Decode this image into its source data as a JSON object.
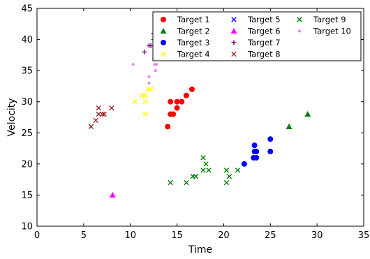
{
  "chart_data": {
    "type": "scatter",
    "title": "",
    "xlabel": "Time",
    "ylabel": "Velocity",
    "xlim": [
      0,
      35
    ],
    "ylim": [
      10,
      45
    ],
    "xticks": [
      0,
      5,
      10,
      15,
      20,
      25,
      30,
      35
    ],
    "yticks": [
      10,
      15,
      20,
      25,
      30,
      35,
      40,
      45
    ],
    "grid": false,
    "legend_position": "top-right",
    "legend_columns": 3,
    "series": [
      {
        "name": "Target 1",
        "marker": "circle",
        "color": "#ff0000",
        "points": [
          [
            14,
            26
          ],
          [
            14.3,
            28
          ],
          [
            14.6,
            28
          ],
          [
            14.3,
            30
          ],
          [
            15,
            29
          ],
          [
            15,
            30
          ],
          [
            15.5,
            30
          ],
          [
            16,
            31
          ],
          [
            16.6,
            32
          ]
        ]
      },
      {
        "name": "Target 2",
        "marker": "triangle",
        "color": "#008000",
        "points": [
          [
            27,
            26
          ],
          [
            29,
            28
          ]
        ]
      },
      {
        "name": "Target 3",
        "marker": "circle",
        "color": "#0000ff",
        "points": [
          [
            22.2,
            20
          ],
          [
            23.2,
            21
          ],
          [
            23.5,
            21
          ],
          [
            23.3,
            22
          ],
          [
            23.5,
            22
          ],
          [
            23.3,
            23
          ],
          [
            25,
            22
          ],
          [
            25,
            24
          ]
        ]
      },
      {
        "name": "Target 4",
        "marker": "x",
        "color": "#ffff00",
        "points": [
          [
            10.5,
            30
          ],
          [
            11.3,
            31
          ],
          [
            11.6,
            31
          ],
          [
            11.6,
            30
          ],
          [
            11.9,
            32
          ],
          [
            12.2,
            32
          ],
          [
            11.6,
            28
          ]
        ]
      },
      {
        "name": "Target 5",
        "marker": "x",
        "color": "#0000ff",
        "points": []
      },
      {
        "name": "Target 6",
        "marker": "triangle",
        "color": "#ff00ff",
        "points": [
          [
            8.1,
            15
          ]
        ]
      },
      {
        "name": "Target 7",
        "marker": "plus",
        "color": "#800080",
        "points": [
          [
            11.5,
            38
          ],
          [
            12,
            39
          ],
          [
            12.2,
            39
          ],
          [
            12.5,
            40
          ],
          [
            12.5,
            41
          ]
        ]
      },
      {
        "name": "Target 8",
        "marker": "x",
        "color": "#a52a2a",
        "points": [
          [
            5.8,
            26
          ],
          [
            6.3,
            27
          ],
          [
            6.6,
            28
          ],
          [
            6.6,
            29
          ],
          [
            7,
            28
          ],
          [
            7.2,
            28
          ],
          [
            8,
            29
          ]
        ]
      },
      {
        "name": "Target 9",
        "marker": "x",
        "color": "#008000",
        "points": [
          [
            14.3,
            17
          ],
          [
            16,
            17
          ],
          [
            16.7,
            18
          ],
          [
            17,
            18
          ],
          [
            17.8,
            19
          ],
          [
            17.8,
            21
          ],
          [
            18.1,
            20
          ],
          [
            18.4,
            19
          ],
          [
            20.3,
            17
          ],
          [
            20.3,
            19
          ],
          [
            20.6,
            18
          ],
          [
            21.5,
            19
          ]
        ]
      },
      {
        "name": "Target 10",
        "marker": "dot",
        "color": "#ee82ee",
        "points": [
          [
            10.3,
            36
          ],
          [
            12,
            33
          ],
          [
            12,
            34
          ],
          [
            12.6,
            36
          ],
          [
            12.8,
            36
          ],
          [
            12.7,
            35
          ],
          [
            12.5,
            37
          ]
        ]
      }
    ]
  }
}
